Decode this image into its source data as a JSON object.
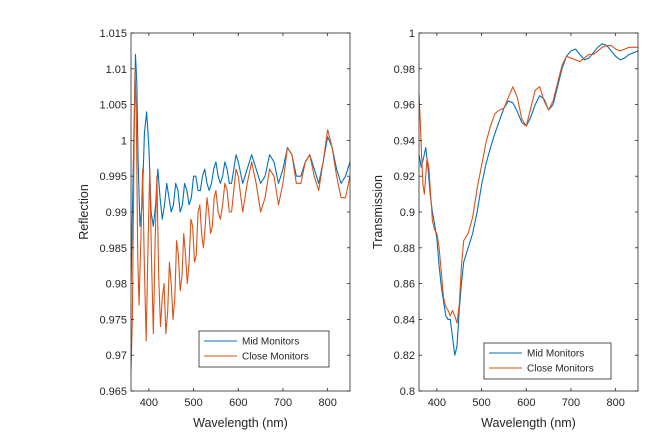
{
  "chart_data": [
    {
      "type": "line",
      "xlabel": "Wavelength (nm)",
      "ylabel": "Reflection",
      "xlim": [
        360,
        850
      ],
      "ylim": [
        0.965,
        1.015
      ],
      "xticks": [
        400,
        500,
        600,
        700,
        800
      ],
      "yticks": [
        0.965,
        0.97,
        0.975,
        0.98,
        0.985,
        0.99,
        0.995,
        1,
        1.005,
        1.01,
        1.015
      ],
      "ytick_labels": [
        "0.965",
        "0.97",
        "0.975",
        "0.98",
        "0.985",
        "0.99",
        "0.995",
        "1",
        "1.005",
        "1.01",
        "1.015"
      ],
      "grid": false,
      "legend_position": "bottom-right",
      "series": [
        {
          "name": "Mid Monitors",
          "color": "#0072BD",
          "x": [
            360,
            365,
            370,
            373,
            376,
            380,
            385,
            390,
            395,
            400,
            405,
            410,
            415,
            420,
            425,
            430,
            435,
            440,
            445,
            450,
            455,
            460,
            465,
            470,
            475,
            480,
            485,
            490,
            495,
            500,
            505,
            510,
            515,
            520,
            525,
            530,
            535,
            540,
            545,
            550,
            555,
            560,
            565,
            570,
            575,
            580,
            585,
            590,
            595,
            600,
            610,
            620,
            630,
            640,
            650,
            660,
            670,
            680,
            690,
            700,
            710,
            720,
            730,
            740,
            750,
            760,
            770,
            780,
            790,
            800,
            810,
            820,
            830,
            840,
            850
          ],
          "y": [
            0.98,
            0.996,
            1.012,
            1.008,
            0.997,
            0.988,
            0.991,
            1.001,
            1.004,
            0.999,
            0.99,
            0.988,
            0.991,
            0.996,
            0.992,
            0.989,
            0.991,
            0.994,
            0.992,
            0.99,
            0.991,
            0.994,
            0.993,
            0.99,
            0.991,
            0.994,
            0.993,
            0.991,
            0.992,
            0.995,
            0.995,
            0.993,
            0.993,
            0.995,
            0.996,
            0.994,
            0.993,
            0.994,
            0.996,
            0.997,
            0.995,
            0.994,
            0.995,
            0.997,
            0.996,
            0.994,
            0.994,
            0.996,
            0.998,
            0.997,
            0.994,
            0.996,
            0.998,
            0.996,
            0.994,
            0.995,
            0.998,
            0.997,
            0.994,
            0.996,
            0.999,
            0.998,
            0.995,
            0.995,
            0.997,
            0.998,
            0.996,
            0.994,
            0.997,
            1.0005,
            0.999,
            0.996,
            0.994,
            0.995,
            0.997
          ]
        },
        {
          "name": "Close Monitors",
          "color": "#D95319",
          "x": [
            360,
            363,
            366,
            369,
            372,
            375,
            378,
            382,
            386,
            390,
            394,
            398,
            402,
            406,
            410,
            414,
            418,
            422,
            426,
            430,
            434,
            438,
            442,
            446,
            450,
            454,
            458,
            462,
            466,
            470,
            474,
            478,
            482,
            486,
            490,
            494,
            498,
            502,
            506,
            510,
            514,
            518,
            522,
            526,
            530,
            534,
            538,
            542,
            546,
            550,
            555,
            560,
            565,
            570,
            575,
            580,
            585,
            590,
            595,
            600,
            610,
            620,
            630,
            640,
            650,
            660,
            670,
            680,
            690,
            700,
            710,
            720,
            730,
            740,
            750,
            760,
            770,
            780,
            790,
            800,
            810,
            820,
            830,
            840,
            850
          ],
          "y": [
            0.968,
            0.975,
            0.994,
            1.01,
            1.003,
            0.984,
            0.977,
            0.986,
            0.996,
            0.982,
            0.972,
            0.985,
            0.996,
            0.983,
            0.973,
            0.986,
            0.995,
            0.981,
            0.974,
            0.978,
            0.98,
            0.973,
            0.976,
            0.983,
            0.98,
            0.975,
            0.978,
            0.986,
            0.984,
            0.979,
            0.981,
            0.987,
            0.984,
            0.98,
            0.983,
            0.989,
            0.988,
            0.983,
            0.984,
            0.99,
            0.991,
            0.987,
            0.985,
            0.988,
            0.992,
            0.99,
            0.987,
            0.988,
            0.992,
            0.993,
            0.99,
            0.989,
            0.991,
            0.994,
            0.993,
            0.99,
            0.99,
            0.993,
            0.996,
            0.995,
            0.99,
            0.994,
            0.997,
            0.994,
            0.99,
            0.992,
            0.996,
            0.995,
            0.991,
            0.994,
            0.999,
            0.998,
            0.994,
            0.994,
            0.997,
            0.998,
            0.995,
            0.993,
            0.997,
            1.0015,
            0.999,
            0.995,
            0.992,
            0.992,
            0.995
          ]
        }
      ]
    },
    {
      "type": "line",
      "xlabel": "Wavelength (nm)",
      "ylabel": "Transmission",
      "xlim": [
        360,
        850
      ],
      "ylim": [
        0.8,
        1.0
      ],
      "xticks": [
        400,
        500,
        600,
        700,
        800
      ],
      "yticks": [
        0.8,
        0.82,
        0.84,
        0.86,
        0.88,
        0.9,
        0.92,
        0.94,
        0.96,
        0.98,
        1
      ],
      "ytick_labels": [
        "0.8",
        "0.82",
        "0.84",
        "0.86",
        "0.88",
        "0.9",
        "0.92",
        "0.94",
        "0.96",
        "0.98",
        "1"
      ],
      "grid": false,
      "legend_position": "bottom-right",
      "series": [
        {
          "name": "Mid Monitors",
          "color": "#0072BD",
          "x": [
            360,
            365,
            370,
            375,
            380,
            385,
            390,
            395,
            400,
            405,
            410,
            415,
            420,
            425,
            430,
            435,
            440,
            445,
            450,
            455,
            460,
            470,
            480,
            490,
            500,
            510,
            520,
            530,
            540,
            550,
            560,
            570,
            580,
            590,
            600,
            610,
            620,
            630,
            640,
            650,
            660,
            670,
            680,
            690,
            700,
            710,
            720,
            730,
            740,
            750,
            760,
            770,
            780,
            790,
            800,
            810,
            820,
            830,
            840,
            850
          ],
          "y": [
            0.932,
            0.925,
            0.93,
            0.936,
            0.925,
            0.91,
            0.9,
            0.893,
            0.885,
            0.87,
            0.858,
            0.85,
            0.842,
            0.84,
            0.84,
            0.83,
            0.82,
            0.825,
            0.845,
            0.86,
            0.872,
            0.88,
            0.888,
            0.9,
            0.915,
            0.927,
            0.936,
            0.944,
            0.951,
            0.958,
            0.962,
            0.961,
            0.956,
            0.95,
            0.948,
            0.953,
            0.96,
            0.965,
            0.963,
            0.957,
            0.96,
            0.97,
            0.98,
            0.987,
            0.99,
            0.991,
            0.988,
            0.985,
            0.986,
            0.989,
            0.992,
            0.994,
            0.993,
            0.99,
            0.987,
            0.985,
            0.986,
            0.988,
            0.989,
            0.99
          ]
        },
        {
          "name": "Close Monitors",
          "color": "#D95319",
          "x": [
            360,
            363,
            366,
            369,
            372,
            375,
            378,
            382,
            386,
            390,
            395,
            400,
            405,
            410,
            415,
            420,
            425,
            430,
            435,
            440,
            445,
            450,
            455,
            460,
            470,
            480,
            490,
            500,
            510,
            520,
            530,
            540,
            550,
            560,
            570,
            580,
            590,
            600,
            610,
            620,
            630,
            640,
            650,
            660,
            670,
            680,
            690,
            700,
            710,
            720,
            730,
            740,
            750,
            760,
            770,
            780,
            790,
            800,
            810,
            820,
            830,
            840,
            850
          ],
          "y": [
            0.966,
            0.95,
            0.93,
            0.915,
            0.91,
            0.92,
            0.93,
            0.925,
            0.91,
            0.895,
            0.89,
            0.888,
            0.88,
            0.866,
            0.852,
            0.847,
            0.845,
            0.842,
            0.845,
            0.842,
            0.838,
            0.848,
            0.87,
            0.884,
            0.888,
            0.897,
            0.913,
            0.926,
            0.939,
            0.948,
            0.955,
            0.957,
            0.958,
            0.964,
            0.97,
            0.964,
            0.952,
            0.948,
            0.958,
            0.968,
            0.97,
            0.962,
            0.957,
            0.962,
            0.972,
            0.982,
            0.987,
            0.986,
            0.985,
            0.984,
            0.986,
            0.988,
            0.988,
            0.99,
            0.992,
            0.993,
            0.993,
            0.991,
            0.99,
            0.991,
            0.992,
            0.992,
            0.992
          ]
        }
      ]
    }
  ]
}
